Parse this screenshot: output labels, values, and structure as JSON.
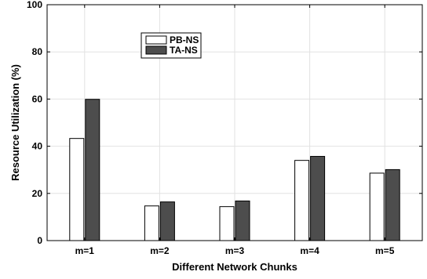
{
  "chart_data": {
    "type": "bar",
    "categories": [
      "m=1",
      "m=2",
      "m=3",
      "m=4",
      "m=5"
    ],
    "series": [
      {
        "name": "PB-NS",
        "values": [
          43.3,
          14.7,
          14.4,
          34.0,
          28.6
        ],
        "color": "#ffffff"
      },
      {
        "name": "TA-NS",
        "values": [
          59.9,
          16.4,
          16.8,
          35.7,
          30.1
        ],
        "color": "#4d4d4d"
      }
    ],
    "xlabel": "Different Network Chunks",
    "ylabel": "Resource Utilization (%)",
    "ylim": [
      0,
      100
    ],
    "yticks": [
      "0",
      "20",
      "40",
      "60",
      "80",
      "100"
    ],
    "grid": true,
    "legend_position": "top-left inside"
  }
}
